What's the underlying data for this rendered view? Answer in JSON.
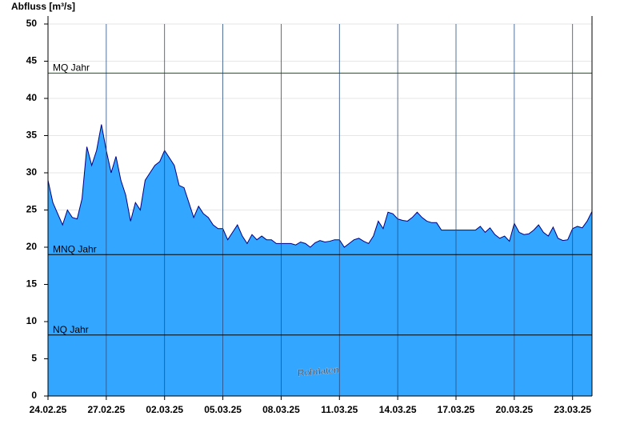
{
  "chart_data": {
    "type": "area",
    "y_label": "Abfluss [m³/s]",
    "annotation": "Rohdaten",
    "xlim": [
      0,
      28
    ],
    "xticks": [
      {
        "value": 0,
        "label": "24.02.25"
      },
      {
        "value": 3,
        "label": "27.02.25"
      },
      {
        "value": 6,
        "label": "02.03.25"
      },
      {
        "value": 9,
        "label": "05.03.25"
      },
      {
        "value": 12,
        "label": "08.03.25"
      },
      {
        "value": 15,
        "label": "11.03.25"
      },
      {
        "value": 18,
        "label": "14.03.25"
      },
      {
        "value": 21,
        "label": "17.03.25"
      },
      {
        "value": 24,
        "label": "20.03.25"
      },
      {
        "value": 27,
        "label": "23.03.25"
      }
    ],
    "ylim": [
      0,
      50
    ],
    "yticks": [
      0,
      5,
      10,
      15,
      20,
      25,
      30,
      35,
      40,
      45,
      50
    ],
    "grid": true,
    "reference_lines": [
      {
        "label": "MQ Jahr",
        "value": 43.4,
        "color": "#006400"
      },
      {
        "label": "MNQ Jahr",
        "value": 19.0,
        "color": "#000000"
      },
      {
        "label": "NQ Jahr",
        "value": 8.2,
        "color": "#000000"
      }
    ],
    "series": [
      {
        "color": "#33a6ff",
        "line_color": "#000080",
        "x": [
          0,
          0.25,
          0.5,
          0.75,
          1,
          1.25,
          1.5,
          1.75,
          2,
          2.25,
          2.5,
          2.75,
          3,
          3.25,
          3.5,
          3.75,
          4,
          4.25,
          4.5,
          4.75,
          5,
          5.25,
          5.5,
          5.75,
          6,
          6.25,
          6.5,
          6.75,
          7,
          7.25,
          7.5,
          7.75,
          8,
          8.25,
          8.5,
          8.75,
          9,
          9.25,
          9.5,
          9.75,
          10,
          10.25,
          10.5,
          10.75,
          11,
          11.25,
          11.5,
          11.75,
          12,
          12.25,
          12.5,
          12.75,
          13,
          13.25,
          13.5,
          13.75,
          14,
          14.25,
          14.5,
          14.75,
          15,
          15.25,
          15.5,
          15.75,
          16,
          16.25,
          16.5,
          16.75,
          17,
          17.25,
          17.5,
          17.75,
          18,
          18.25,
          18.5,
          18.75,
          19,
          19.25,
          19.5,
          19.75,
          20,
          20.25,
          20.5,
          20.75,
          21,
          21.25,
          21.5,
          21.75,
          22,
          22.25,
          22.5,
          22.75,
          23,
          23.25,
          23.5,
          23.75,
          24,
          24.25,
          24.5,
          24.75,
          25,
          25.25,
          25.5,
          25.75,
          26,
          26.25,
          26.5,
          26.75,
          27,
          27.25,
          27.5,
          27.75,
          28
        ],
        "values": [
          29,
          26,
          24.5,
          23,
          25,
          24,
          23.8,
          26.5,
          33.5,
          31,
          33,
          36.5,
          33,
          30,
          32.2,
          29,
          27,
          23.5,
          26,
          25,
          29,
          30,
          31,
          31.5,
          33,
          32,
          31,
          28.3,
          28,
          26,
          24,
          25.5,
          24.5,
          24,
          23,
          22.5,
          22.5,
          21,
          22,
          23,
          21.5,
          20.5,
          21.7,
          21,
          21.5,
          21,
          21,
          20.5,
          20.5,
          20.5,
          20.5,
          20.3,
          20.7,
          20.5,
          20,
          20.6,
          20.9,
          20.7,
          20.8,
          21,
          21,
          20,
          20.5,
          21,
          21.2,
          20.8,
          20.5,
          21.5,
          23.5,
          22.5,
          24.7,
          24.5,
          23.8,
          23.6,
          23.5,
          24,
          24.7,
          24,
          23.5,
          23.3,
          23.3,
          22.3,
          22.3,
          22.3,
          22.3,
          22.3,
          22.3,
          22.3,
          22.3,
          22.8,
          22,
          22.6,
          21.7,
          21.2,
          21.5,
          20.8,
          23.2,
          22,
          21.7,
          21.8,
          22.3,
          23,
          22,
          21.5,
          22.7,
          21.2,
          20.9,
          21,
          22.5,
          22.8,
          22.6,
          23.5,
          24.8
        ]
      }
    ]
  }
}
